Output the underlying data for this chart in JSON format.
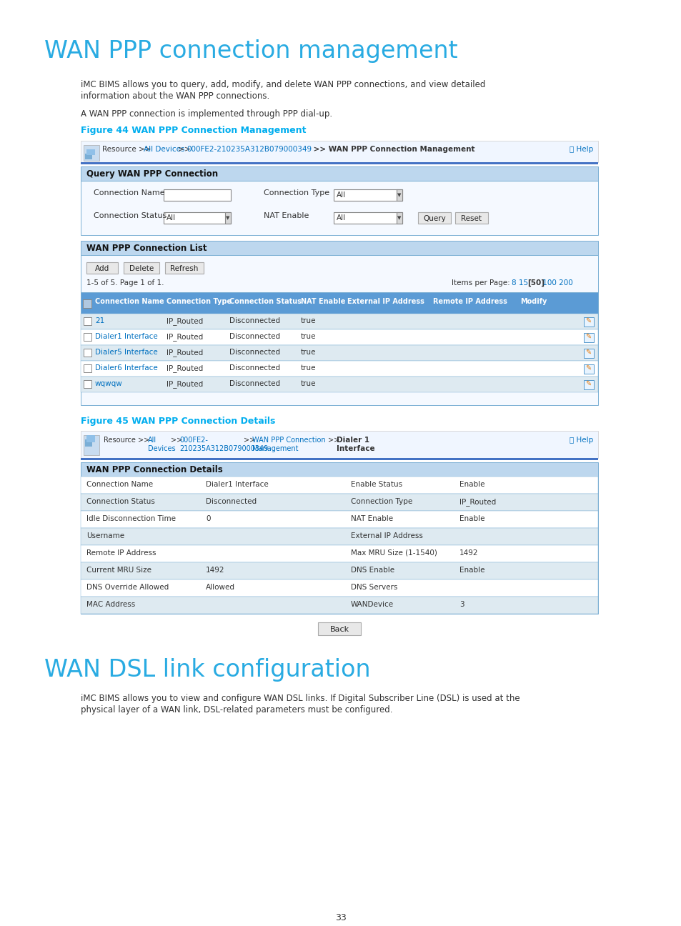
{
  "page_bg": "#ffffff",
  "title1": "WAN PPP connection management",
  "title1_color": "#29ABE2",
  "body1_line1": "iMC BIMS allows you to query, add, modify, and delete WAN PPP connections, and view detailed",
  "body1_line2": "information about the WAN PPP connections.",
  "body2": "A WAN PPP connection is implemented through PPP dial-up.",
  "fig44_label": "Figure 44 WAN PPP Connection Management",
  "fig_label_color": "#00AEEF",
  "nav1_gray": "Resource >> ",
  "nav1_link1": "All Devices",
  "nav1_sep1": " >> ",
  "nav1_link2": "000FE2-210235A312B079000349",
  "nav1_sep2": " >> WAN PPP Connection Management",
  "help_text": "Help",
  "query_section_title": "Query WAN PPP Connection",
  "conn_name_label": "Connection Name",
  "conn_type_label": "Connection Type",
  "conn_status_label": "Connection Status",
  "nat_enable_label": "NAT Enable",
  "all_text": "All",
  "query_btn": "Query",
  "reset_btn": "Reset",
  "list_section_title": "WAN PPP Connection List",
  "add_btn": "Add",
  "delete_btn": "Delete",
  "refresh_btn": "Refresh",
  "pagination": "1-5 of 5. Page 1 of 1.",
  "items_prefix": "Items per Page:",
  "items_8_15": "8 15 ",
  "items_50": "[50]",
  "items_100_200": " 100 200",
  "table1_headers": [
    "Connection Name",
    "Connection Type",
    "Connection Status",
    "NAT Enable",
    "External IP Address",
    "Remote IP Address",
    "Modify"
  ],
  "table1_rows": [
    [
      "21",
      "IP_Routed",
      "Disconnected",
      "true"
    ],
    [
      "Dialer1 Interface",
      "IP_Routed",
      "Disconnected",
      "true"
    ],
    [
      "Dialer5 Interface",
      "IP_Routed",
      "Disconnected",
      "true"
    ],
    [
      "Dialer6 Interface",
      "IP_Routed",
      "Disconnected",
      "true"
    ],
    [
      "wqwqw",
      "IP_Routed",
      "Disconnected",
      "true"
    ]
  ],
  "fig45_label": "Figure 45 WAN PPP Connection Details",
  "details_section_title": "WAN PPP Connection Details",
  "details_rows": [
    [
      "Connection Name",
      "Dialer1 Interface",
      "Enable Status",
      "Enable"
    ],
    [
      "Connection Status",
      "Disconnected",
      "Connection Type",
      "IP_Routed"
    ],
    [
      "Idle Disconnection Time",
      "0",
      "NAT Enable",
      "Enable"
    ],
    [
      "Username",
      "",
      "External IP Address",
      ""
    ],
    [
      "Remote IP Address",
      "",
      "Max MRU Size (1-1540)",
      "1492"
    ],
    [
      "Current MRU Size",
      "1492",
      "DNS Enable",
      "Enable"
    ],
    [
      "DNS Override Allowed",
      "Allowed",
      "DNS Servers",
      ""
    ],
    [
      "MAC Address",
      "",
      "WANDevice",
      "3"
    ]
  ],
  "back_btn": "Back",
  "title2": "WAN DSL link configuration",
  "title2_color": "#29ABE2",
  "body3_line1": "iMC BIMS allows you to view and configure WAN DSL links. If Digital Subscriber Line (DSL) is used at the",
  "body3_line2": "physical layer of a WAN link, DSL-related parameters must be configured.",
  "page_number": "33",
  "section_header_bg": "#BDD7EE",
  "table_header_bg": "#5B9BD5",
  "row_alt_bg": "#DEEAF1",
  "row_bg": "#ffffff",
  "ui_border": "#7BAFD4",
  "link_color": "#0070C0",
  "link_color2": "#00B0F0",
  "nav_bg": "#F0F6FF",
  "separator_color": "#4472C4",
  "button_bg": "#E8E8E8",
  "button_border": "#AAAAAA",
  "body_text_color": "#333333",
  "ui_inner_bg": "#F5F9FF"
}
